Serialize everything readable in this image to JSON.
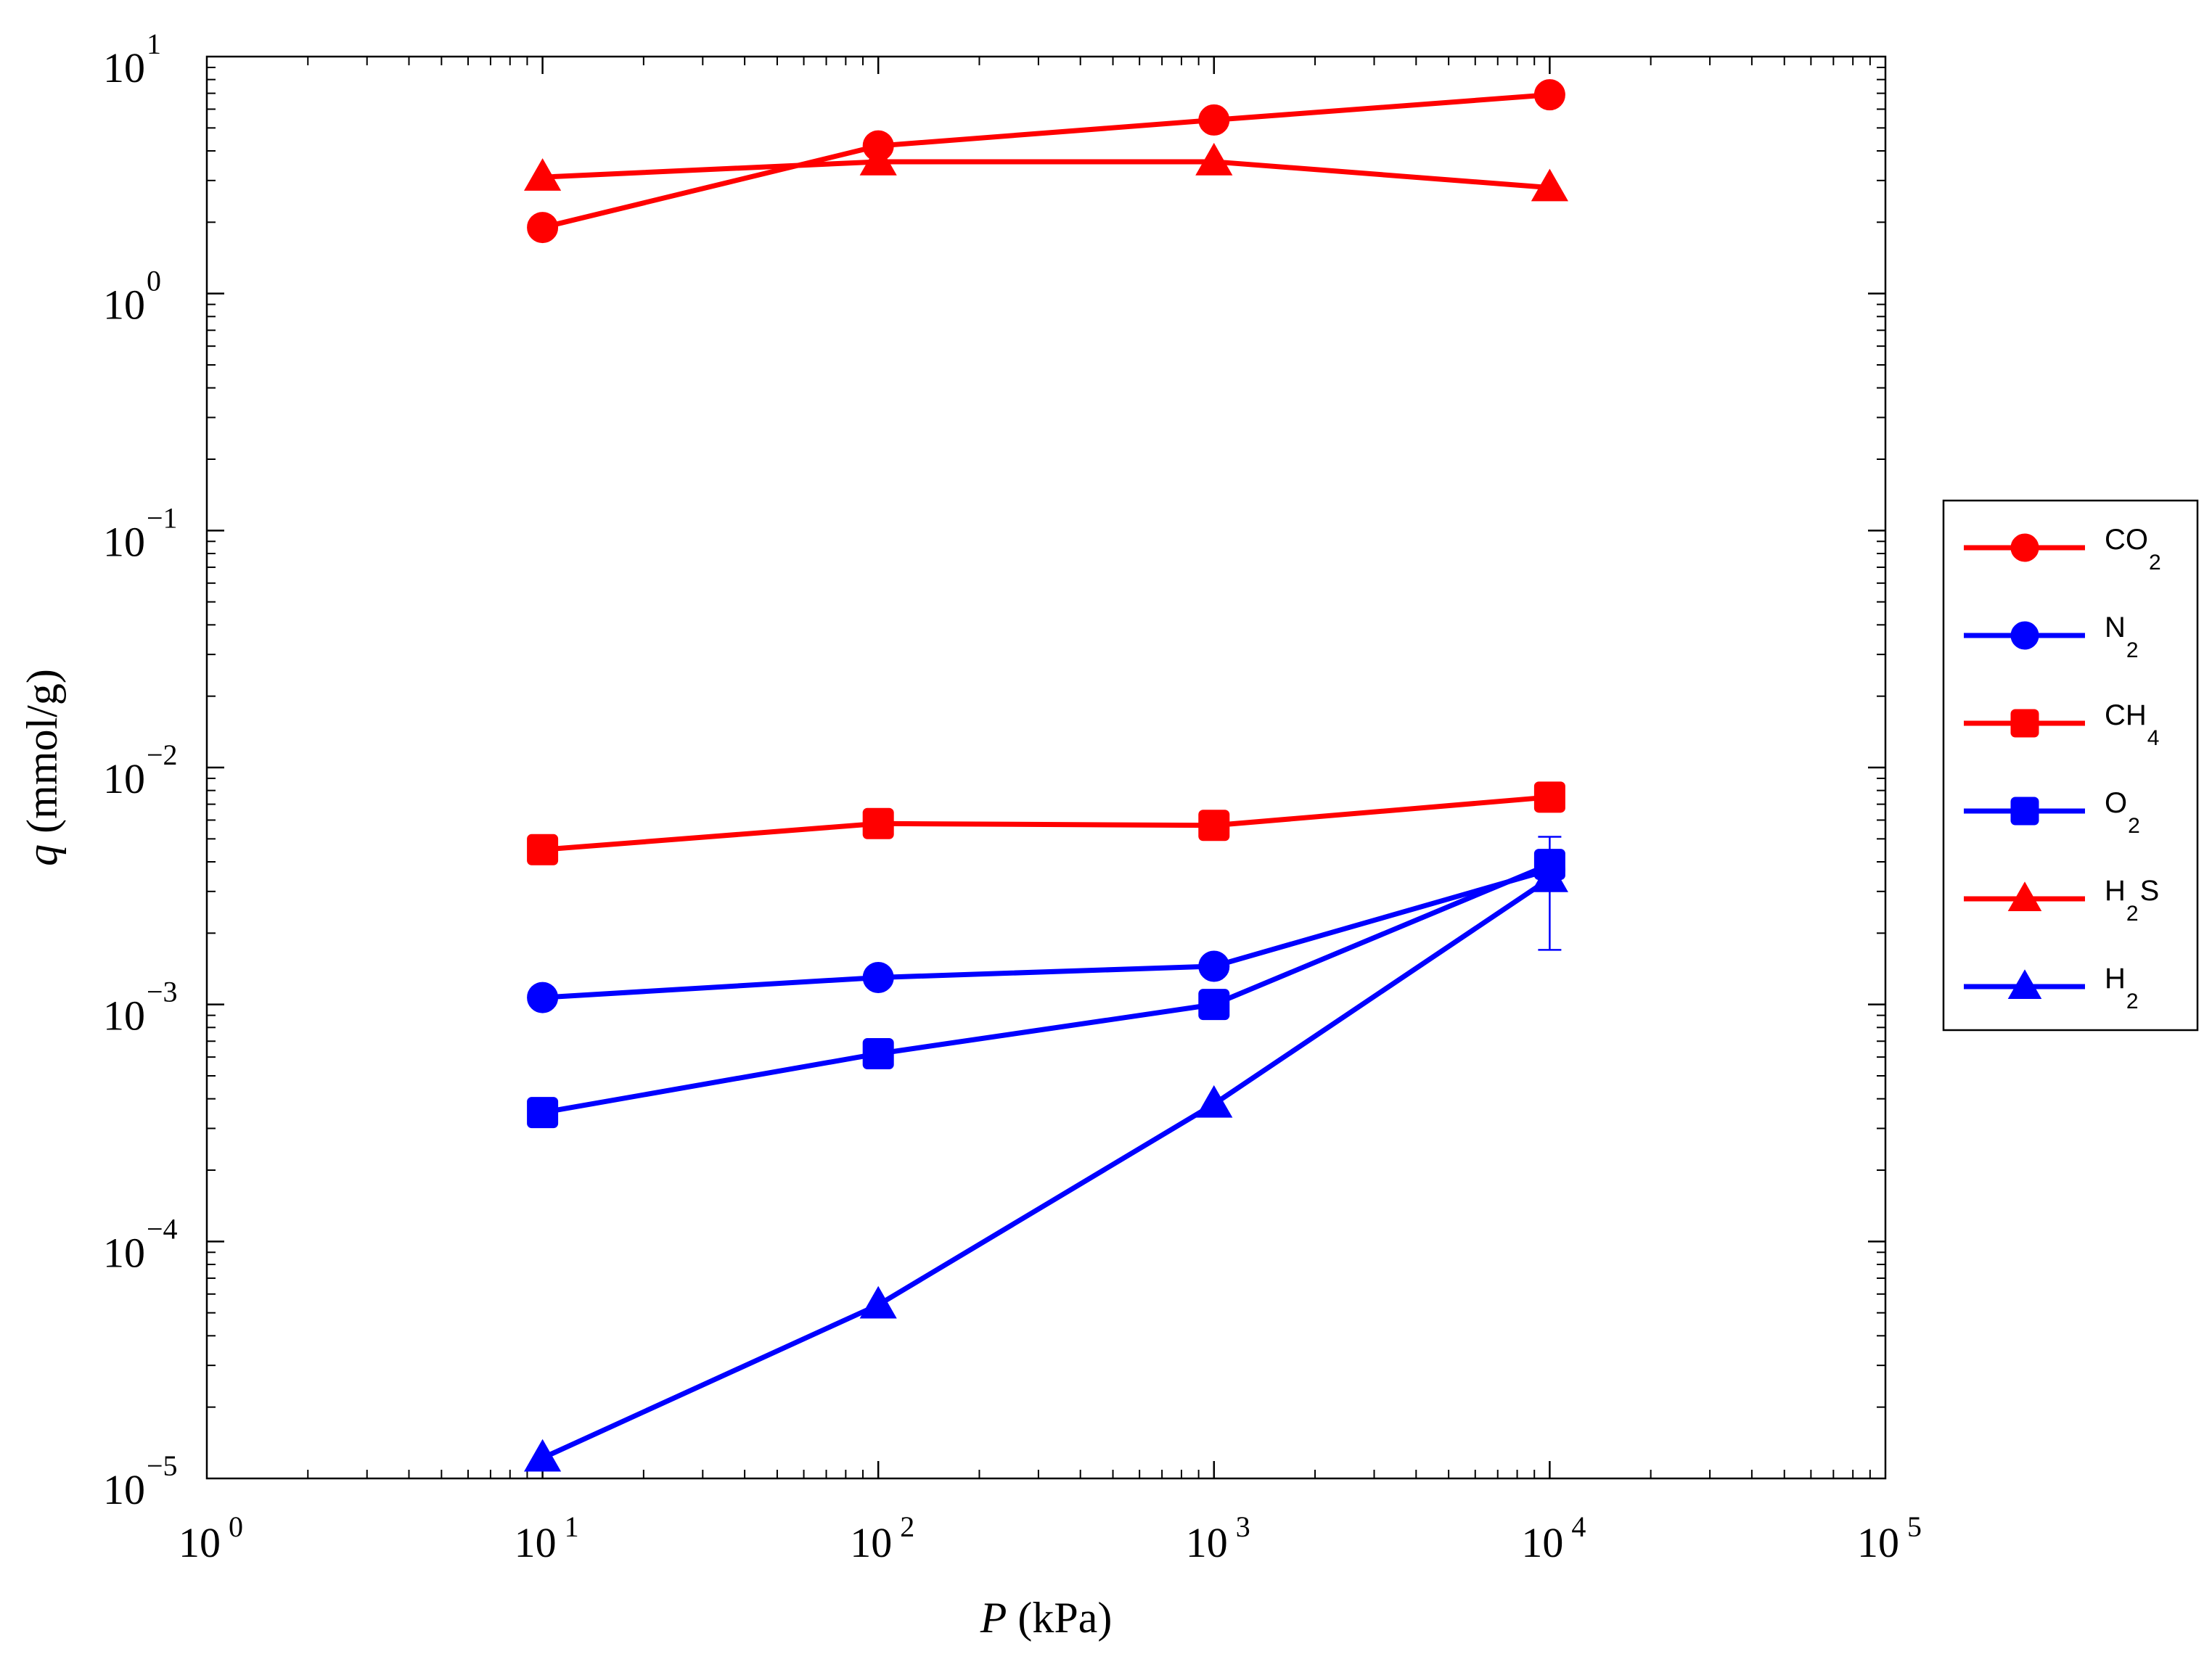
{
  "chart_data": {
    "type": "line",
    "xlabel": {
      "var": "P",
      "unit": " (kPa)"
    },
    "ylabel": {
      "var": "q",
      "unit": " (mmol/g)"
    },
    "xscale": "log",
    "yscale": "log",
    "xlim": [
      1,
      100000
    ],
    "ylim": [
      1e-05,
      10
    ],
    "x_ticks": [
      {
        "base": "10",
        "exp": "0"
      },
      {
        "base": "10",
        "exp": "1"
      },
      {
        "base": "10",
        "exp": "2"
      },
      {
        "base": "10",
        "exp": "3"
      },
      {
        "base": "10",
        "exp": "4"
      },
      {
        "base": "10",
        "exp": "5"
      }
    ],
    "y_ticks": [
      {
        "base": "10",
        "exp": "−5"
      },
      {
        "base": "10",
        "exp": "−4"
      },
      {
        "base": "10",
        "exp": "−3"
      },
      {
        "base": "10",
        "exp": "−2"
      },
      {
        "base": "10",
        "exp": "−1"
      },
      {
        "base": "10",
        "exp": "0"
      },
      {
        "base": "10",
        "exp": "1"
      }
    ],
    "grid": false,
    "legend_position": "right",
    "x": [
      10,
      100,
      1000,
      10000
    ],
    "series": [
      {
        "name": "CO2",
        "label": "CO",
        "sub": "2",
        "color": "#ff0000",
        "marker": "circle",
        "values": [
          1.9,
          4.2,
          5.4,
          6.9
        ]
      },
      {
        "name": "N2",
        "label": "N",
        "sub": "2",
        "color": "#0000ff",
        "marker": "circle",
        "values": [
          0.00107,
          0.0013,
          0.00145,
          0.0037
        ],
        "errors": [
          0,
          0,
          0.00012,
          0.0003
        ]
      },
      {
        "name": "CH4",
        "label": "CH",
        "sub": "4",
        "color": "#ff0000",
        "marker": "square",
        "values": [
          0.0045,
          0.0058,
          0.0057,
          0.0075
        ]
      },
      {
        "name": "O2",
        "label": "O",
        "sub": "2",
        "color": "#0000ff",
        "marker": "square",
        "values": [
          0.00035,
          0.00062,
          0.001,
          0.0039
        ],
        "errors": [
          0,
          0,
          0.00012,
          0.0003
        ]
      },
      {
        "name": "H2S",
        "label": "H",
        "sub": "2",
        "suffix": "S",
        "color": "#ff0000",
        "marker": "triangle",
        "values": [
          3.1,
          3.6,
          3.6,
          2.8
        ]
      },
      {
        "name": "H2",
        "label": "H",
        "sub": "2",
        "color": "#0000ff",
        "marker": "triangle",
        "values": [
          1.22e-05,
          5.4e-05,
          0.00038,
          0.0034
        ],
        "errors": [
          0,
          0,
          0,
          0.0017
        ]
      }
    ]
  }
}
